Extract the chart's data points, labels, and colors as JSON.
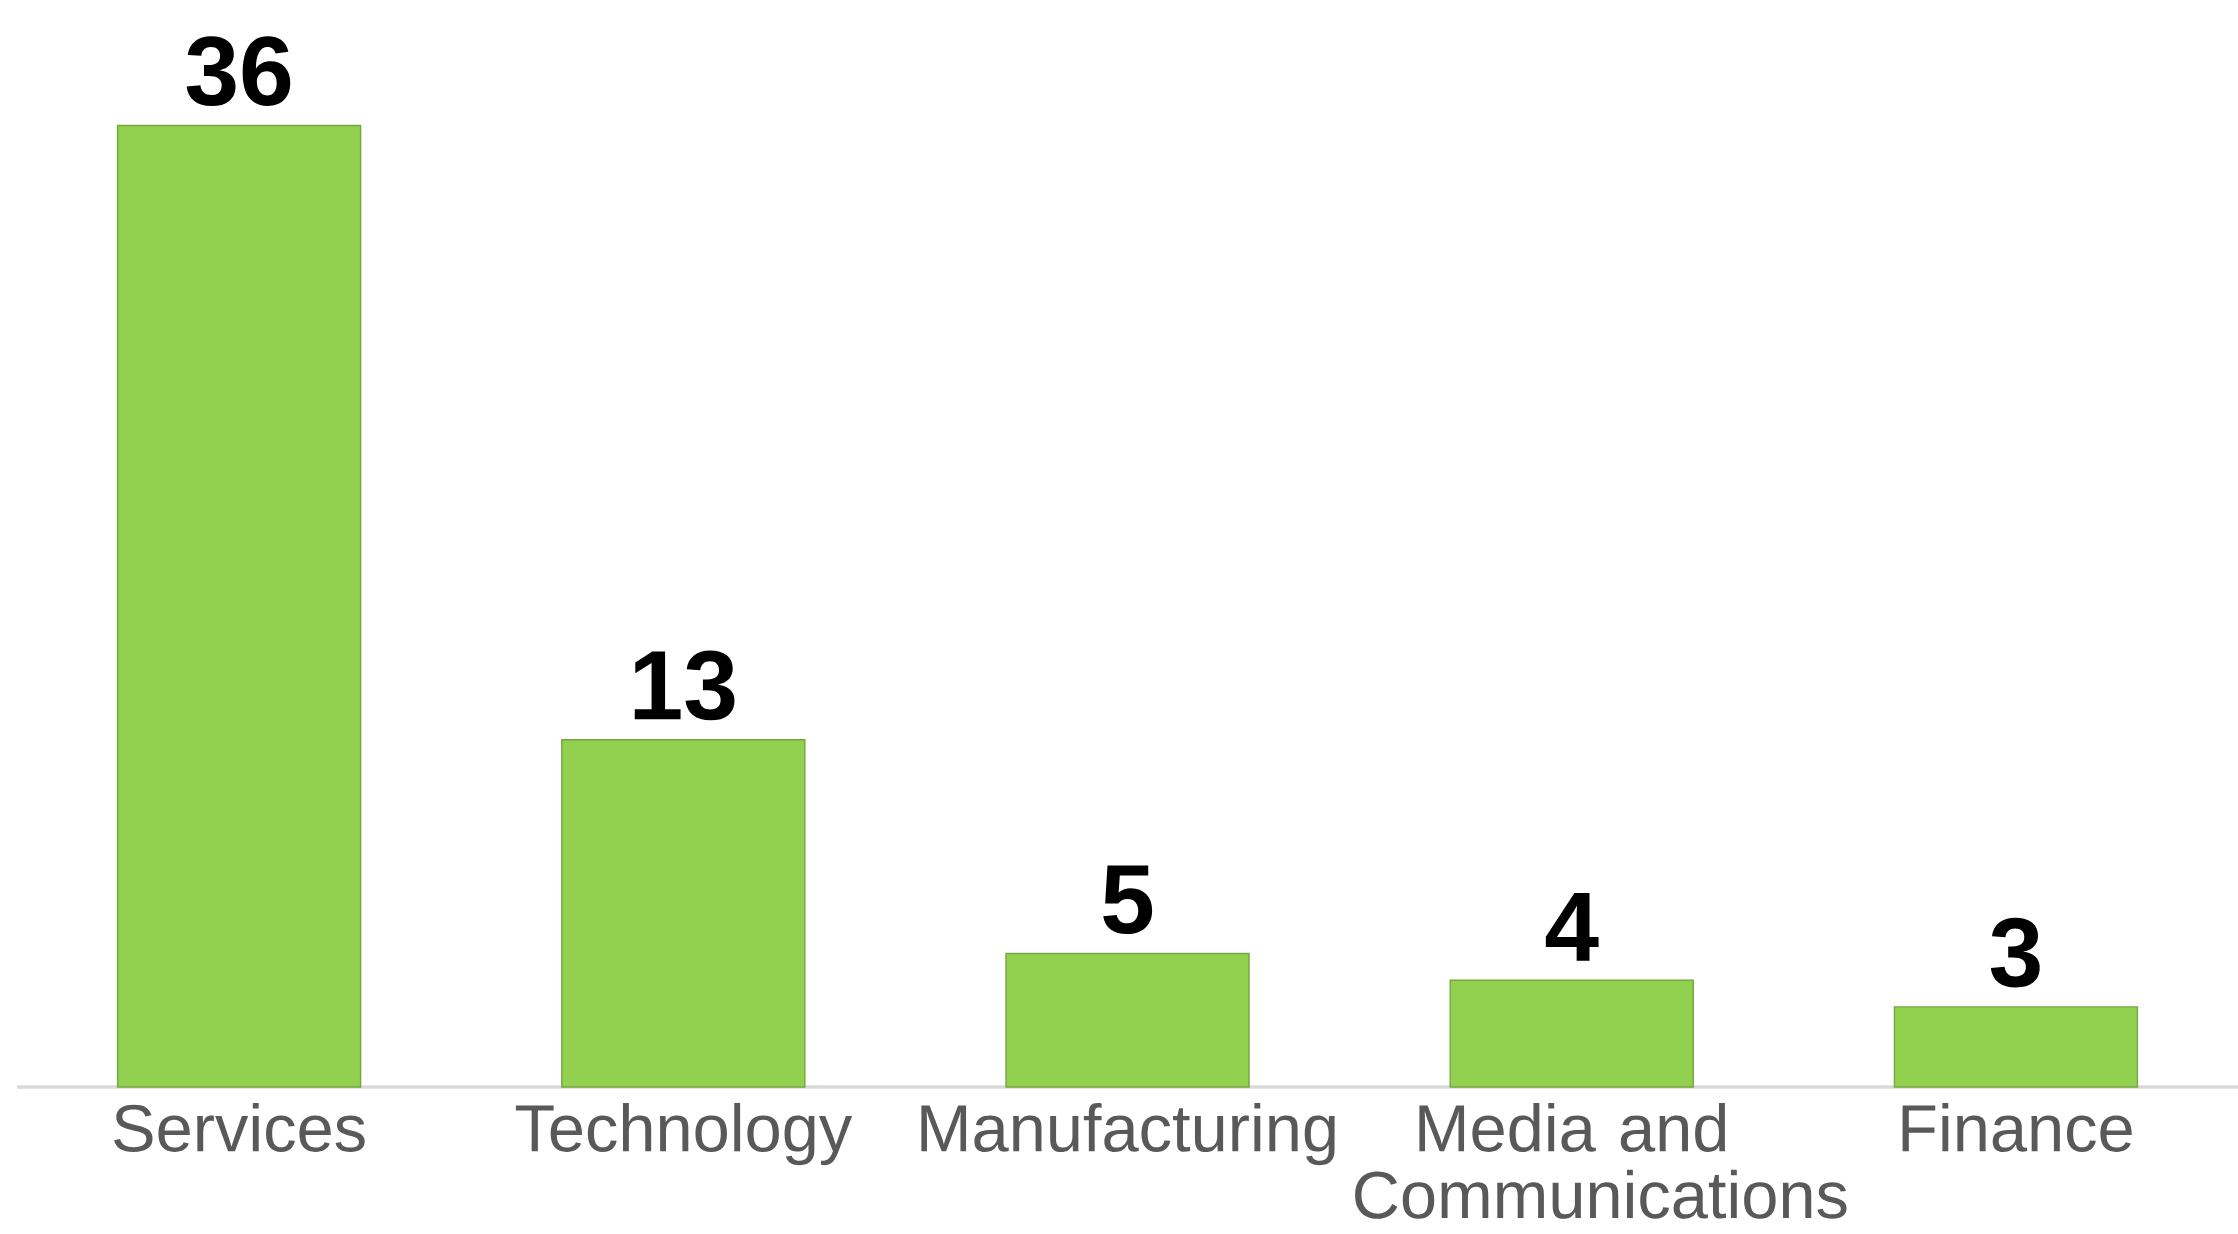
{
  "chart_data": {
    "type": "bar",
    "categories": [
      "Services",
      "Technology",
      "Manufacturing",
      "Media and Communications",
      "Finance"
    ],
    "values": [
      36,
      13,
      5,
      4,
      3
    ],
    "color": "#92d050",
    "data_labels": true
  }
}
